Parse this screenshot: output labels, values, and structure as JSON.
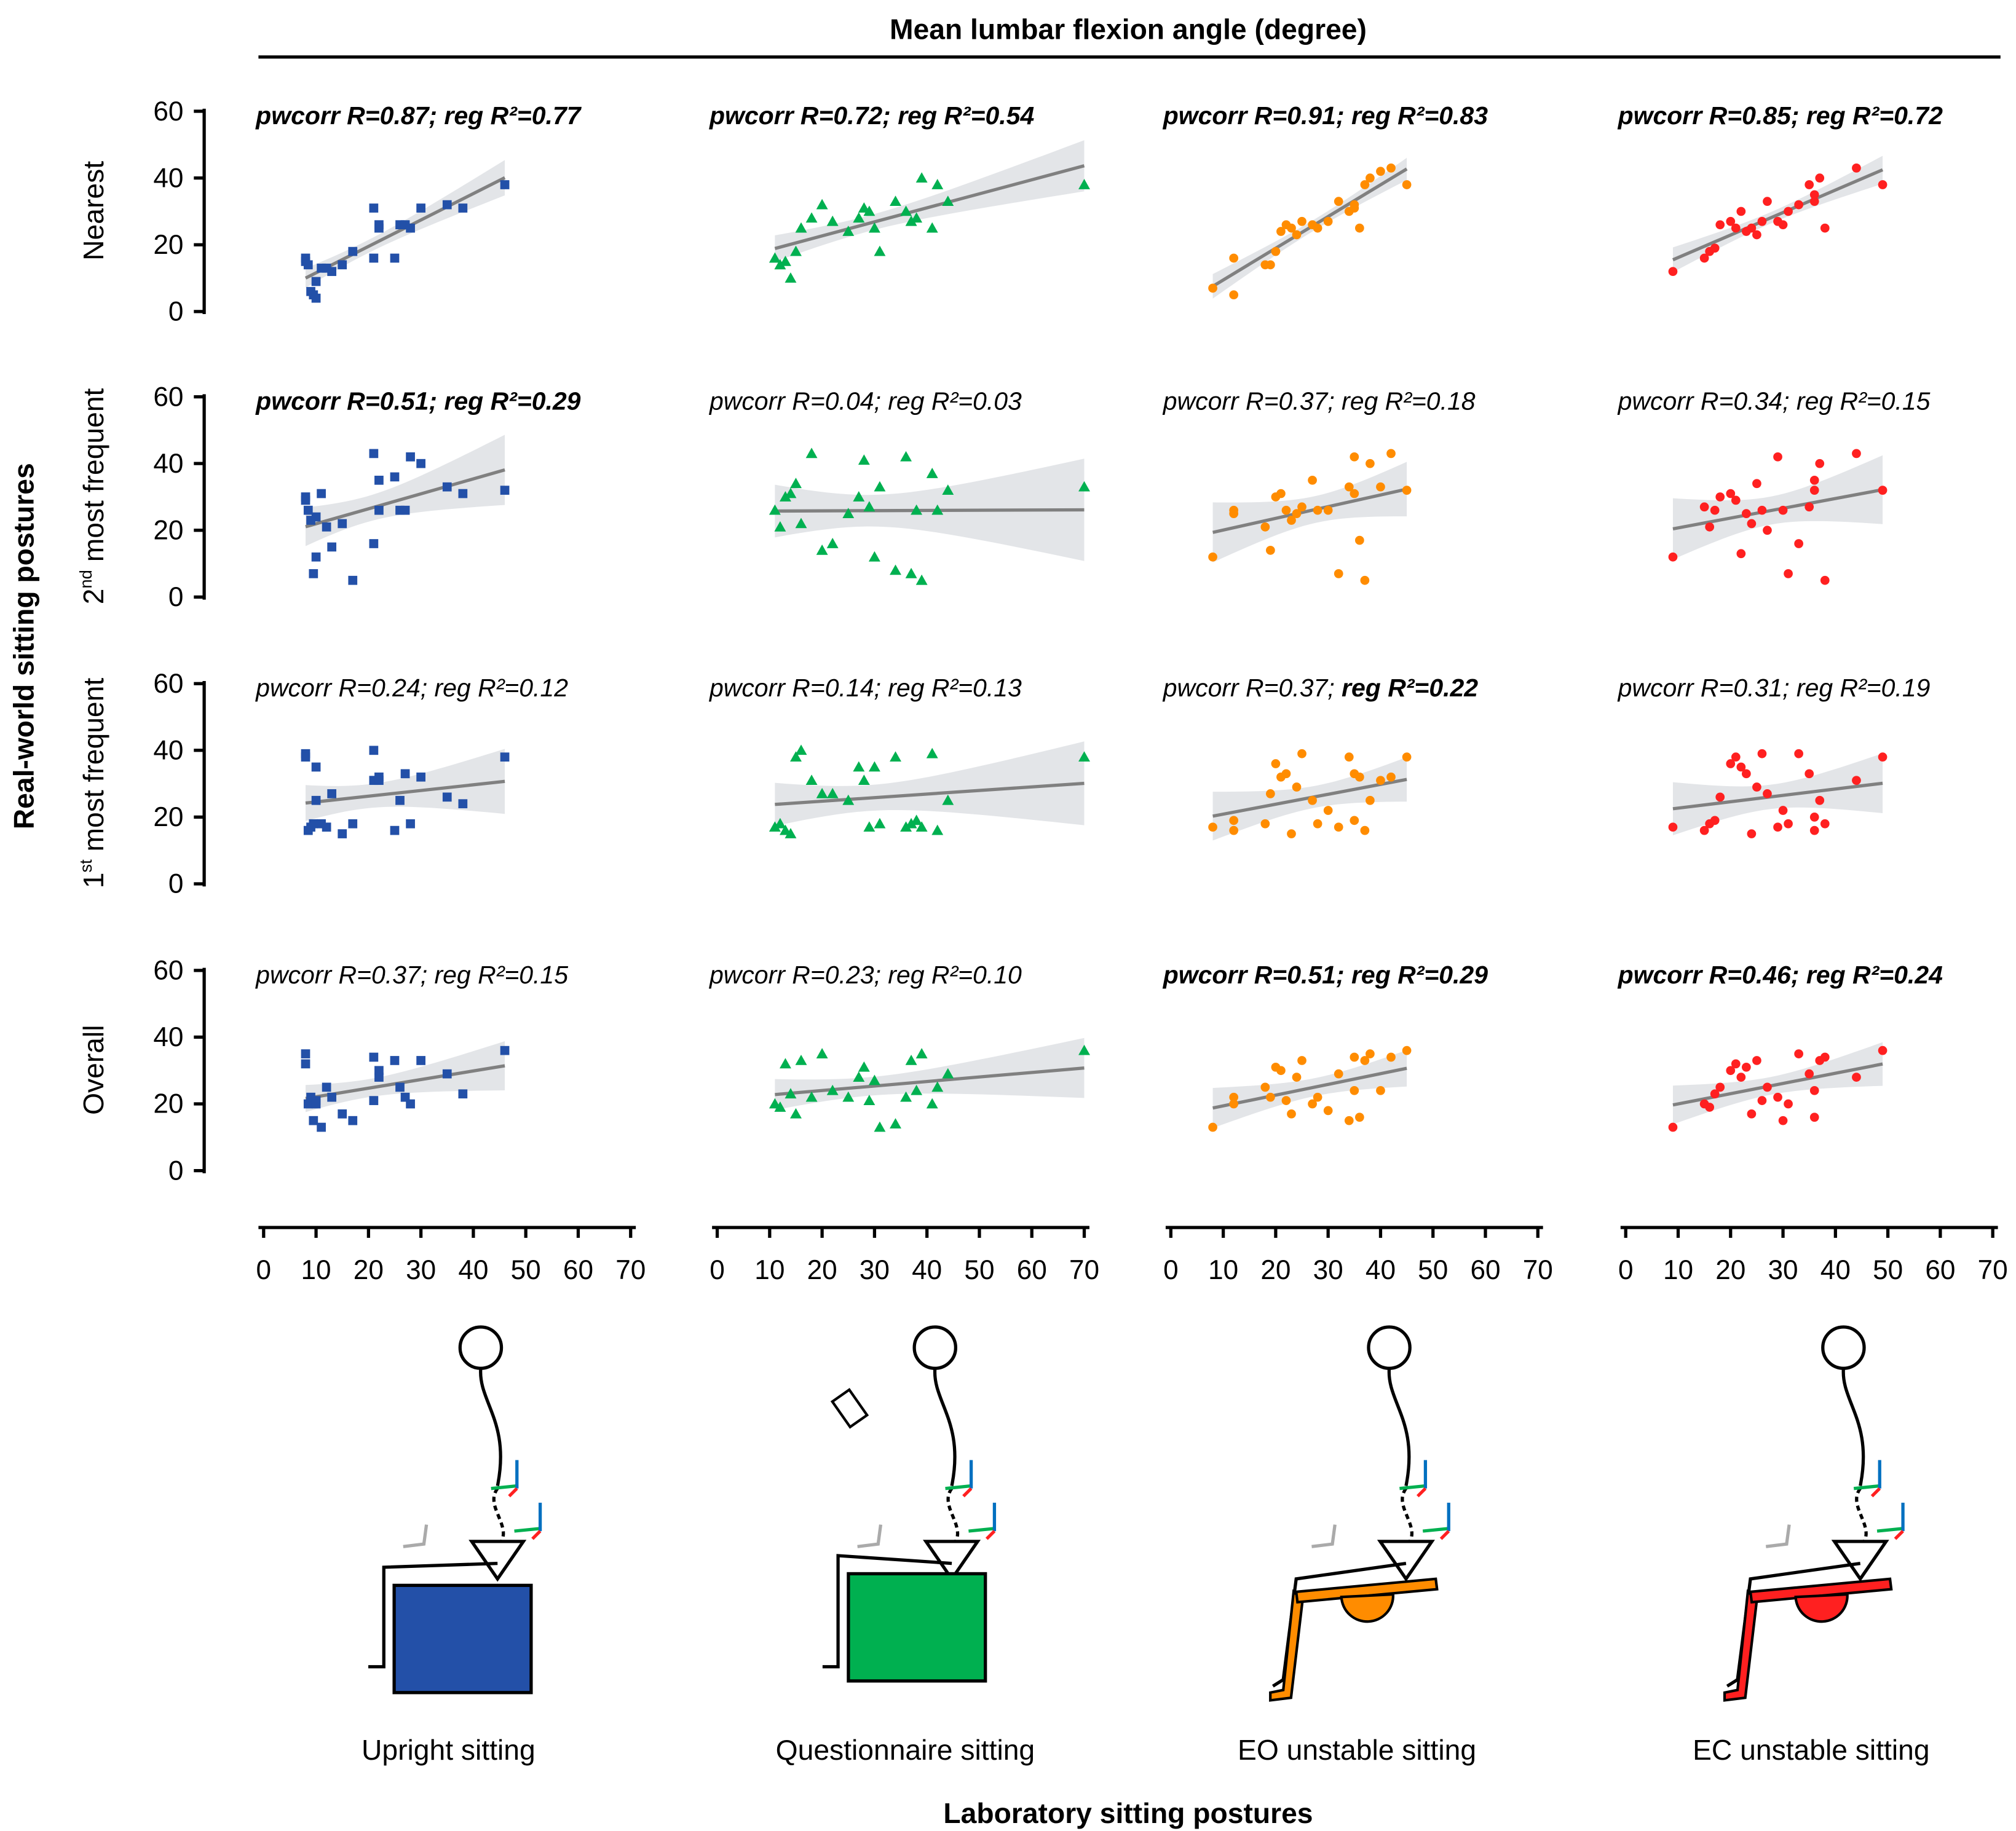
{
  "chart_data": {
    "type": "scatter",
    "title": "Mean lumbar flexion angle (degree)",
    "xlabel": "Laboratory sitting postures",
    "ylabel": "Real-world sitting postures",
    "xlim": [
      0,
      70
    ],
    "ylim": [
      0,
      60
    ],
    "x_ticks": [
      "0",
      "10",
      "20",
      "30",
      "40",
      "50",
      "60",
      "70"
    ],
    "y_ticks": [
      "0",
      "20",
      "40",
      "60"
    ],
    "grid": false,
    "band_color": "#e3e5e8",
    "line_color": "#808080",
    "columns": [
      {
        "name": "Upright sitting",
        "color": "#2350a8",
        "marker": "square",
        "x": [
          8,
          8,
          8.5,
          9,
          9.5,
          10,
          10,
          11,
          12,
          13,
          15,
          17,
          21,
          21,
          22,
          22,
          25,
          26,
          27,
          28,
          30,
          35,
          38,
          46
        ]
      },
      {
        "name": "Questionnaire sitting",
        "color": "#00b050",
        "marker": "triangle",
        "x": [
          11,
          12,
          13,
          14,
          15,
          16,
          18,
          20,
          22,
          25,
          27,
          28,
          29,
          30,
          31,
          34,
          36,
          37,
          38,
          39,
          41,
          42,
          44,
          70
        ]
      },
      {
        "name": "EO unstable sitting",
        "color": "#ff8c00",
        "marker": "circle",
        "x": [
          8,
          12,
          12,
          18,
          19,
          20,
          21,
          22,
          23,
          24,
          25,
          27,
          28,
          30,
          32,
          34,
          35,
          35,
          36,
          37,
          38,
          40,
          42,
          45
        ]
      },
      {
        "name": "EC unstable sitting",
        "color": "#ff2020",
        "marker": "circle",
        "x": [
          9,
          15,
          16,
          17,
          18,
          20,
          21,
          22,
          23,
          24,
          25,
          26,
          27,
          29,
          30,
          31,
          33,
          35,
          36,
          36,
          37,
          38,
          44,
          49
        ]
      }
    ],
    "rows": [
      {
        "label": "Nearest",
        "sup": "",
        "rest": ""
      },
      {
        "label": "2",
        "sup": "nd",
        "rest": " most frequent"
      },
      {
        "label": "1",
        "sup": "st",
        "rest": " most frequent"
      },
      {
        "label": "Overall",
        "sup": "",
        "rest": ""
      }
    ],
    "panels": [
      [
        {
          "annotation": [
            {
              "text": "pwcorr R=0.87;",
              "bold": true
            },
            {
              "text": " reg R²=0.77",
              "bold": true
            }
          ],
          "y": [
            16,
            15,
            14,
            6,
            5,
            4,
            9,
            13,
            13,
            12,
            14,
            18,
            31,
            16,
            25,
            26,
            16,
            26,
            26,
            25,
            31,
            32,
            31,
            38
          ]
        },
        {
          "annotation": [
            {
              "text": "pwcorr R=0.72;",
              "bold": true
            },
            {
              "text": " reg R²=0.54",
              "bold": true
            }
          ],
          "y": [
            16,
            14,
            15,
            10,
            18,
            25,
            28,
            32,
            27,
            24,
            28,
            31,
            30,
            25,
            18,
            33,
            30,
            27,
            28,
            40,
            25,
            38,
            33,
            38
          ]
        },
        {
          "annotation": [
            {
              "text": "pwcorr R=0.91;",
              "bold": true
            },
            {
              "text": " reg R²=0.83",
              "bold": true
            }
          ],
          "y": [
            7,
            5,
            16,
            14,
            14,
            18,
            24,
            26,
            25,
            23,
            27,
            26,
            25,
            27,
            33,
            30,
            31,
            32,
            25,
            38,
            40,
            42,
            43,
            38
          ]
        },
        {
          "annotation": [
            {
              "text": "pwcorr R=0.85;",
              "bold": true
            },
            {
              "text": " reg R²=0.72",
              "bold": true
            }
          ],
          "y": [
            12,
            16,
            18,
            19,
            26,
            27,
            25,
            30,
            24,
            25,
            23,
            27,
            33,
            27,
            26,
            30,
            32,
            38,
            33,
            35,
            40,
            25,
            43,
            38
          ]
        }
      ],
      [
        {
          "annotation": [
            {
              "text": "pwcorr R=0.51;",
              "bold": true
            },
            {
              "text": " reg R²=0.29",
              "bold": true
            }
          ],
          "y": [
            29,
            30,
            26,
            23,
            7,
            24,
            12,
            31,
            21,
            15,
            22,
            5,
            16,
            43,
            35,
            26,
            36,
            26,
            26,
            42,
            40,
            33,
            31,
            32
          ]
        },
        {
          "annotation": [
            {
              "text": "pwcorr R=0.04;",
              "bold": false
            },
            {
              "text": " reg R²=0.03",
              "bold": false
            }
          ],
          "y": [
            26,
            21,
            30,
            31,
            34,
            22,
            43,
            14,
            16,
            25,
            30,
            41,
            27,
            12,
            33,
            8,
            42,
            7,
            26,
            5,
            37,
            26,
            32,
            33
          ]
        },
        {
          "annotation": [
            {
              "text": "pwcorr R=0.37;",
              "bold": false
            },
            {
              "text": " reg R²=0.18",
              "bold": false
            }
          ],
          "y": [
            12,
            26,
            25,
            21,
            14,
            30,
            31,
            26,
            23,
            25,
            27,
            35,
            26,
            26,
            7,
            33,
            42,
            31,
            17,
            5,
            40,
            33,
            43,
            32
          ]
        },
        {
          "annotation": [
            {
              "text": "pwcorr R=0.34;",
              "bold": false
            },
            {
              "text": " reg R²=0.15",
              "bold": false
            }
          ],
          "y": [
            12,
            27,
            21,
            26,
            30,
            31,
            29,
            13,
            25,
            22,
            34,
            26,
            20,
            42,
            26,
            7,
            16,
            27,
            32,
            35,
            40,
            5,
            43,
            32
          ]
        }
      ],
      [
        {
          "annotation": [
            {
              "text": "pwcorr R=0.24;",
              "bold": false
            },
            {
              "text": " reg R²=0.12",
              "bold": false
            }
          ],
          "y": [
            39,
            38,
            16,
            17,
            18,
            35,
            25,
            18,
            17,
            27,
            15,
            18,
            31,
            40,
            31,
            32,
            16,
            25,
            33,
            18,
            32,
            26,
            24,
            38
          ]
        },
        {
          "annotation": [
            {
              "text": "pwcorr R=0.14;",
              "bold": false
            },
            {
              "text": " reg R²=0.13",
              "bold": false
            }
          ],
          "y": [
            17,
            18,
            16,
            15,
            38,
            40,
            31,
            27,
            27,
            25,
            35,
            31,
            17,
            35,
            18,
            38,
            17,
            18,
            19,
            17,
            39,
            16,
            25,
            38
          ]
        },
        {
          "annotation": [
            {
              "text": "pwcorr R=0.37;",
              "bold": false
            },
            {
              "text": " reg R²=0.22",
              "bold": true
            }
          ],
          "y": [
            17,
            16,
            19,
            18,
            27,
            36,
            32,
            33,
            15,
            29,
            39,
            25,
            18,
            22,
            17,
            38,
            19,
            33,
            32,
            16,
            25,
            31,
            32,
            38
          ]
        },
        {
          "annotation": [
            {
              "text": "pwcorr R=0.31;",
              "bold": false
            },
            {
              "text": " reg R²=0.19",
              "bold": false
            }
          ],
          "y": [
            17,
            16,
            18,
            19,
            26,
            36,
            38,
            35,
            33,
            15,
            29,
            39,
            27,
            17,
            22,
            18,
            39,
            33,
            16,
            20,
            25,
            18,
            31,
            38
          ]
        }
      ],
      [
        {
          "annotation": [
            {
              "text": "pwcorr R=0.37;",
              "bold": false
            },
            {
              "text": " reg R²=0.15",
              "bold": false
            }
          ],
          "y": [
            35,
            32,
            20,
            22,
            15,
            21,
            20,
            13,
            25,
            22,
            17,
            15,
            21,
            34,
            28,
            30,
            33,
            25,
            22,
            20,
            33,
            29,
            23,
            36
          ]
        },
        {
          "annotation": [
            {
              "text": "pwcorr R=0.23;",
              "bold": false
            },
            {
              "text": " reg R²=0.10",
              "bold": false
            }
          ],
          "y": [
            20,
            19,
            32,
            23,
            17,
            33,
            22,
            35,
            24,
            22,
            28,
            31,
            21,
            27,
            13,
            14,
            22,
            33,
            24,
            35,
            20,
            25,
            29,
            36
          ]
        },
        {
          "annotation": [
            {
              "text": "pwcorr R=0.51;",
              "bold": true
            },
            {
              "text": " reg R²=0.29",
              "bold": true
            }
          ],
          "y": [
            13,
            22,
            20,
            25,
            22,
            31,
            30,
            21,
            17,
            28,
            33,
            20,
            22,
            18,
            29,
            15,
            34,
            24,
            16,
            33,
            35,
            24,
            34,
            36
          ]
        },
        {
          "annotation": [
            {
              "text": "pwcorr R=0.46;",
              "bold": true
            },
            {
              "text": " reg R²=0.24",
              "bold": true
            }
          ],
          "y": [
            13,
            20,
            19,
            23,
            25,
            30,
            32,
            28,
            31,
            17,
            33,
            21,
            25,
            22,
            15,
            20,
            35,
            29,
            24,
            16,
            33,
            34,
            28,
            36
          ]
        }
      ]
    ]
  }
}
